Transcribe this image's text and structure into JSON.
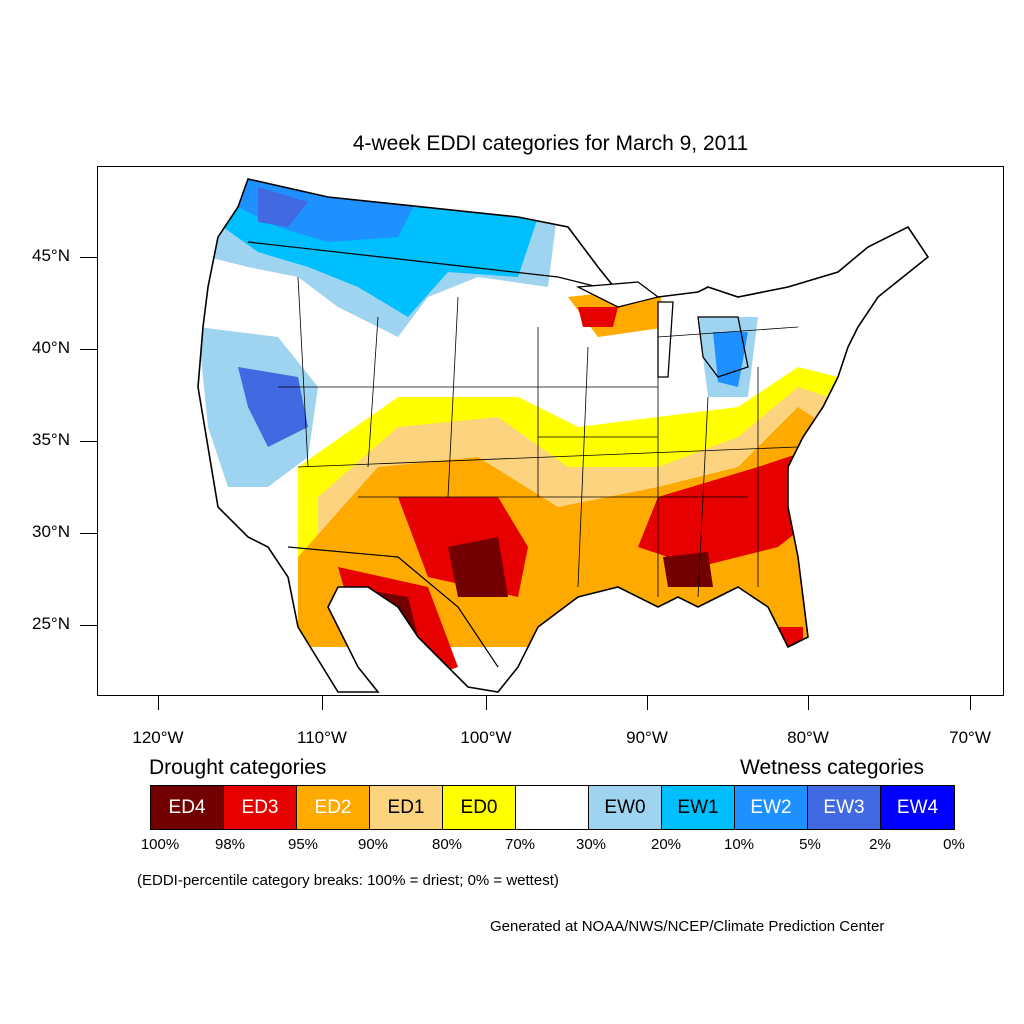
{
  "title": "4-week EDDI categories for March 9, 2011",
  "lat_labels": [
    "45°N",
    "40°N",
    "35°N",
    "30°N",
    "25°N"
  ],
  "lon_labels": [
    "120°W",
    "110°W",
    "100°W",
    "90°W",
    "80°W",
    "70°W"
  ],
  "legend": {
    "drought_title": "Drought categories",
    "wetness_title": "Wetness categories",
    "categories": [
      {
        "label": "ED4",
        "color": "#730000",
        "text_color": "#ffffff"
      },
      {
        "label": "ED3",
        "color": "#e60000",
        "text_color": "#ffffff"
      },
      {
        "label": "ED2",
        "color": "#ffaa00",
        "text_color": "#ffffff"
      },
      {
        "label": "ED1",
        "color": "#fcd37f",
        "text_color": "#000000"
      },
      {
        "label": "ED0",
        "color": "#ffff00",
        "text_color": "#000000"
      },
      {
        "label": "",
        "color": "#ffffff",
        "text_color": "#000000"
      },
      {
        "label": "EW0",
        "color": "#9fd4f0",
        "text_color": "#000000"
      },
      {
        "label": "EW1",
        "color": "#00bfff",
        "text_color": "#000000"
      },
      {
        "label": "EW2",
        "color": "#1e90ff",
        "text_color": "#ffffff"
      },
      {
        "label": "EW3",
        "color": "#4169e1",
        "text_color": "#ffffff"
      },
      {
        "label": "EW4",
        "color": "#0000ff",
        "text_color": "#ffffff"
      }
    ],
    "breaks": [
      "100%",
      "98%",
      "95%",
      "90%",
      "80%",
      "70%",
      "30%",
      "20%",
      "10%",
      "5%",
      "2%",
      "0%"
    ]
  },
  "note": "(EDDI-percentile category breaks: 100% = driest; 0% = wettest)",
  "credit": "Generated at NOAA/NWS/NCEP/Climate Prediction Center"
}
